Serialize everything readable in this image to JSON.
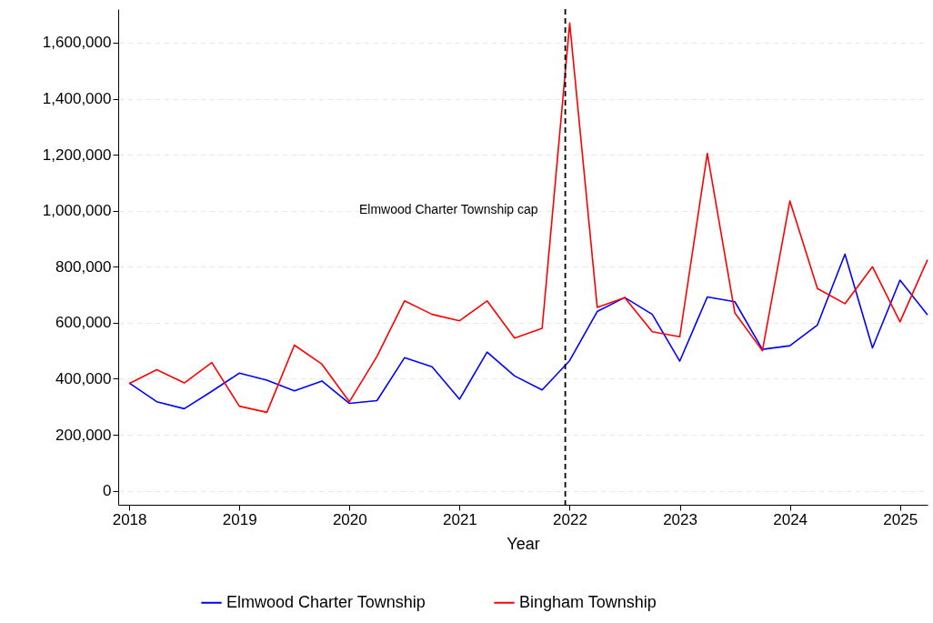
{
  "chart_data": {
    "type": "line",
    "xlabel": "Year",
    "x": [
      2018,
      2018.25,
      2018.5,
      2018.75,
      2019,
      2019.25,
      2019.5,
      2019.75,
      2020,
      2020.25,
      2020.5,
      2020.75,
      2021,
      2021.25,
      2021.5,
      2021.75,
      2022,
      2022.25,
      2022.5,
      2022.75,
      2023,
      2023.25,
      2023.5,
      2023.75,
      2024,
      2024.25,
      2024.5,
      2024.75,
      2025,
      2025.25
    ],
    "series": [
      {
        "name": "Elmwood Charter Township",
        "color": "#0000ff",
        "values": [
          385000,
          318000,
          293000,
          355000,
          420000,
          395000,
          357000,
          392000,
          312000,
          322000,
          475000,
          443000,
          327000,
          495000,
          410000,
          360000,
          465000,
          640000,
          690000,
          630000,
          463000,
          692000,
          675000,
          505000,
          518000,
          592000,
          845000,
          510000,
          752000,
          628000
        ]
      },
      {
        "name": "Bingham Township",
        "color": "#ff0000",
        "values": [
          383000,
          432000,
          385000,
          458000,
          302000,
          280000,
          520000,
          452000,
          318000,
          480000,
          678000,
          630000,
          607000,
          678000,
          545000,
          580000,
          1670000,
          655000,
          690000,
          568000,
          550000,
          1205000,
          635000,
          500000,
          1035000,
          722000,
          668000,
          800000,
          603000,
          825000
        ]
      }
    ],
    "xlim": [
      2017.9,
      2025.25
    ],
    "xticks": [
      2018,
      2019,
      2020,
      2021,
      2022,
      2023,
      2024,
      2025
    ],
    "ylim": [
      -50000,
      1720000
    ],
    "yticks": [
      0,
      {
        "value": 200000,
        "label": "200,000"
      },
      {
        "value": 400000,
        "label": "400,000"
      },
      {
        "value": 600000,
        "label": "600,000"
      },
      {
        "value": 800000,
        "label": "800,000"
      },
      {
        "value": 1000000,
        "label": "1,000,000"
      },
      {
        "value": 1200000,
        "label": "1,200,000"
      },
      {
        "value": 1400000,
        "label": "1,400,000"
      },
      {
        "value": 1600000,
        "label": "1,600,000"
      }
    ],
    "ref_lines": [
      {
        "axis": "x",
        "value": 2021.96,
        "label": "Elmwood Charter Township cap",
        "color": "#000000",
        "line_style": "dashed"
      }
    ],
    "grid": "y",
    "legend": "bottom",
    "marker": "none",
    "line_style": "solid"
  }
}
